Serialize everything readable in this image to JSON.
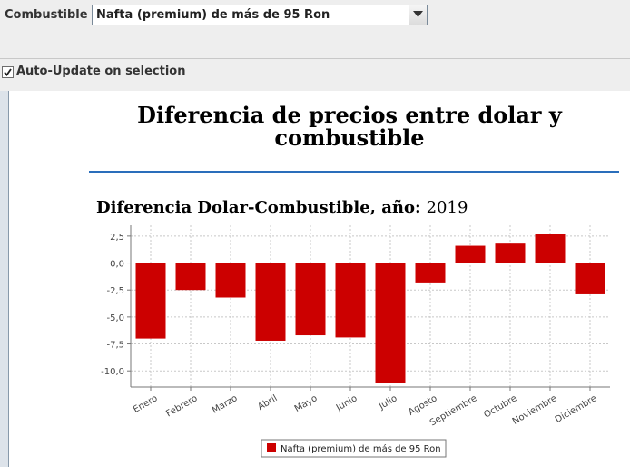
{
  "fuel_selector": {
    "label": "Combustible *",
    "selected": "Nafta (premium) de más de 95 Ron"
  },
  "auto_update": {
    "label": "Auto-Update on selection",
    "checked": true
  },
  "page": {
    "title": "Diferencia de precios entre dolar y combustible",
    "chart_heading_label": "Diferencia Dolar-Combustible, año:",
    "chart_heading_year": "2019"
  },
  "colors": {
    "bar": "#cc0000",
    "rule": "#2a6ebb"
  },
  "chart_data": {
    "type": "bar",
    "categories": [
      "Enero",
      "Febrero",
      "Marzo",
      "Abril",
      "Mayo",
      "Junio",
      "Julio",
      "Agosto",
      "Septiembre",
      "Octubre",
      "Noviembre",
      "Diciembre"
    ],
    "series": [
      {
        "name": "Nafta (premium) de más de 95 Ron",
        "values": [
          -7.0,
          -2.5,
          -3.2,
          -7.2,
          -6.7,
          -6.9,
          -11.1,
          -1.8,
          1.6,
          1.8,
          2.7,
          -2.9
        ]
      }
    ],
    "ylim": [
      -11.5,
      3.5
    ],
    "yticks": [
      2.5,
      0.0,
      -2.5,
      -5.0,
      -7.5,
      -10.0
    ],
    "ytick_labels": [
      "2,5",
      "0,0",
      "-2,5",
      "-5,0",
      "-7,5",
      "-10,0"
    ],
    "grid": true,
    "legend": "bottom-center"
  }
}
